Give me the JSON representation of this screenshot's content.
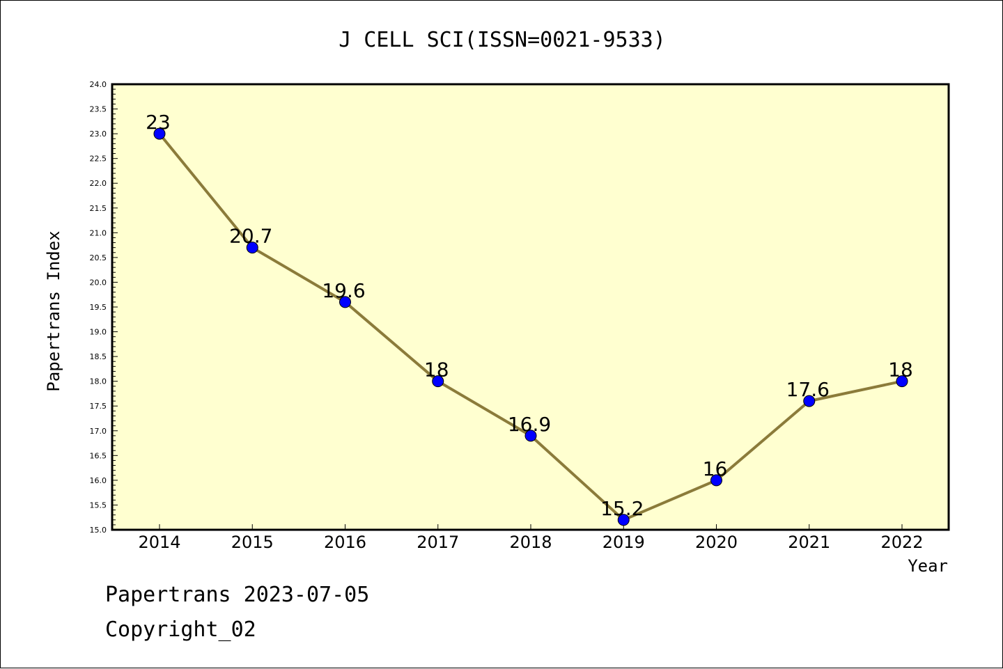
{
  "chart_data": {
    "type": "line",
    "title": "J CELL SCI(ISSN=0021-9533)",
    "xlabel": "Year",
    "ylabel": "Papertrans Index",
    "x": [
      "2014",
      "2015",
      "2016",
      "2017",
      "2018",
      "2019",
      "2020",
      "2021",
      "2022"
    ],
    "series": [
      {
        "values": [
          23,
          20.7,
          19.6,
          18,
          16.9,
          15.2,
          16,
          17.6,
          18
        ],
        "labels": [
          "23",
          "20.7",
          "19.6",
          "18",
          "16.9",
          "15.2",
          "16",
          "17.6",
          "18"
        ]
      }
    ],
    "ylim": [
      15.0,
      24.0
    ],
    "ytick_step": 0.5,
    "grid": false,
    "colors": {
      "plot_background": "#ffffd0",
      "line": "#8b7b3a",
      "marker": "#0000ff",
      "axis": "#000000"
    }
  },
  "footer": {
    "line1": "Papertrans 2023-07-05",
    "line2": "Copyright_02"
  }
}
